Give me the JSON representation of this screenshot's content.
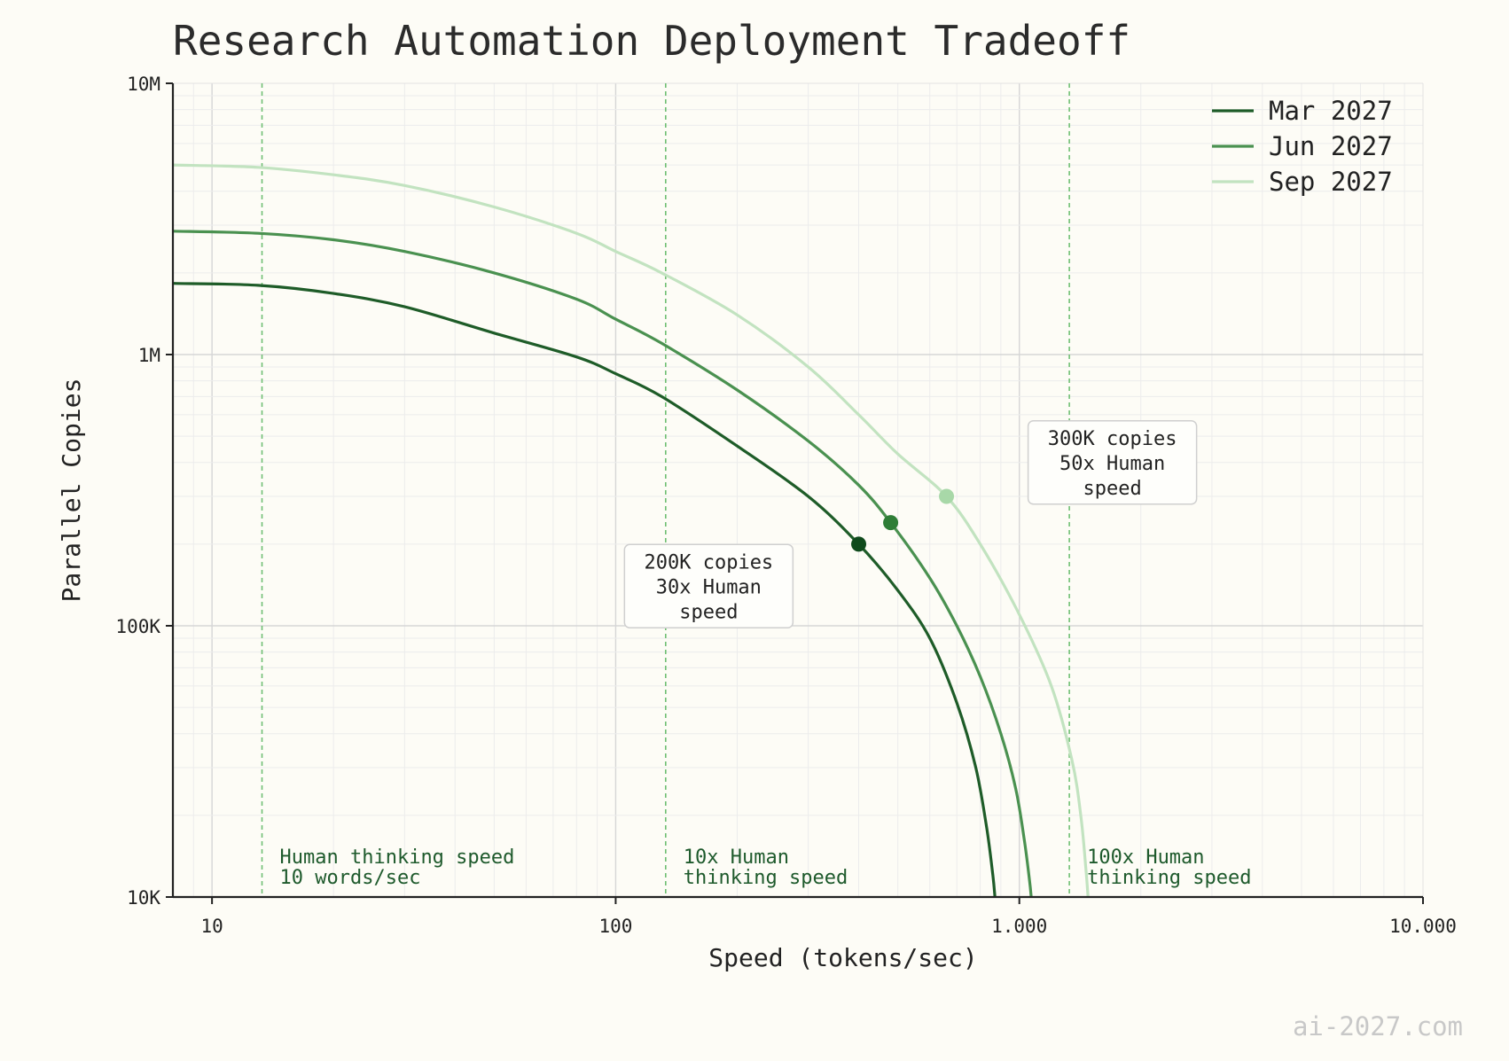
{
  "chart_data": {
    "type": "line",
    "title": "Research Automation Deployment Tradeoff",
    "xlabel": "Speed (tokens/sec)",
    "ylabel": "Parallel Copies",
    "x_scale": "log",
    "y_scale": "log",
    "xlim": [
      8,
      10000
    ],
    "ylim": [
      10000,
      10000000
    ],
    "x_ticks": [
      {
        "value": 10,
        "label": "10"
      },
      {
        "value": 100,
        "label": "100"
      },
      {
        "value": 1000,
        "label": "1.000"
      },
      {
        "value": 10000,
        "label": "10.000"
      }
    ],
    "y_ticks": [
      {
        "value": 10000,
        "label": "10K"
      },
      {
        "value": 100000,
        "label": "100K"
      },
      {
        "value": 1000000,
        "label": "1M"
      },
      {
        "value": 10000000,
        "label": "10M"
      }
    ],
    "grid": true,
    "legend_position": "top-right",
    "series": [
      {
        "name": "Mar 2027",
        "color": "#1e5c28",
        "points": [
          [
            8,
            1830000
          ],
          [
            13,
            1800000
          ],
          [
            20,
            1680000
          ],
          [
            30,
            1500000
          ],
          [
            50,
            1200000
          ],
          [
            80,
            980000
          ],
          [
            100,
            850000
          ],
          [
            130,
            700000
          ],
          [
            200,
            460000
          ],
          [
            300,
            300000
          ],
          [
            400,
            200000
          ],
          [
            500,
            135000
          ],
          [
            600,
            90000
          ],
          [
            700,
            52000
          ],
          [
            780,
            30000
          ],
          [
            830,
            18000
          ],
          [
            860,
            12000
          ],
          [
            870,
            10000
          ]
        ]
      },
      {
        "name": "Jun 2027",
        "color": "#4a9150",
        "points": [
          [
            8,
            2850000
          ],
          [
            13,
            2800000
          ],
          [
            20,
            2650000
          ],
          [
            30,
            2400000
          ],
          [
            50,
            2000000
          ],
          [
            80,
            1600000
          ],
          [
            100,
            1350000
          ],
          [
            130,
            1100000
          ],
          [
            200,
            740000
          ],
          [
            300,
            480000
          ],
          [
            400,
            330000
          ],
          [
            480,
            240000
          ],
          [
            600,
            150000
          ],
          [
            700,
            100000
          ],
          [
            800,
            65000
          ],
          [
            900,
            40000
          ],
          [
            980,
            25000
          ],
          [
            1030,
            16000
          ],
          [
            1060,
            11500
          ],
          [
            1070,
            10000
          ]
        ]
      },
      {
        "name": "Sep 2027",
        "color": "#c2e3c0",
        "points": [
          [
            8,
            5000000
          ],
          [
            13,
            4900000
          ],
          [
            20,
            4600000
          ],
          [
            30,
            4200000
          ],
          [
            50,
            3500000
          ],
          [
            80,
            2800000
          ],
          [
            100,
            2400000
          ],
          [
            130,
            2000000
          ],
          [
            200,
            1400000
          ],
          [
            300,
            900000
          ],
          [
            400,
            600000
          ],
          [
            500,
            430000
          ],
          [
            660,
            300000
          ],
          [
            800,
            200000
          ],
          [
            1000,
            110000
          ],
          [
            1200,
            60000
          ],
          [
            1350,
            32000
          ],
          [
            1420,
            20000
          ],
          [
            1460,
            13000
          ],
          [
            1480,
            10000
          ]
        ]
      }
    ],
    "markers": [
      {
        "x": 400,
        "y": 200000,
        "color": "#0f4a1c"
      },
      {
        "x": 480,
        "y": 240000,
        "color": "#2e7d36"
      },
      {
        "x": 660,
        "y": 300000,
        "color": "#a8d8a8"
      }
    ],
    "reference_lines": [
      {
        "x": 13.3,
        "label_lines": [
          "Human thinking speed",
          "10 words/sec"
        ]
      },
      {
        "x": 133,
        "label_lines": [
          "10x Human",
          "thinking speed"
        ]
      },
      {
        "x": 1330,
        "label_lines": [
          "100x Human",
          "thinking speed"
        ]
      }
    ],
    "annotations": [
      {
        "anchor_x": 170,
        "anchor_y": 140000,
        "lines": [
          "200K copies",
          "30x Human",
          "speed"
        ]
      },
      {
        "anchor_x": 1700,
        "anchor_y": 400000,
        "lines": [
          "300K copies",
          "50x Human",
          "speed"
        ]
      }
    ],
    "ref_line_color": "#6fbf73"
  },
  "footer": {
    "text": "ai-2027.com"
  }
}
